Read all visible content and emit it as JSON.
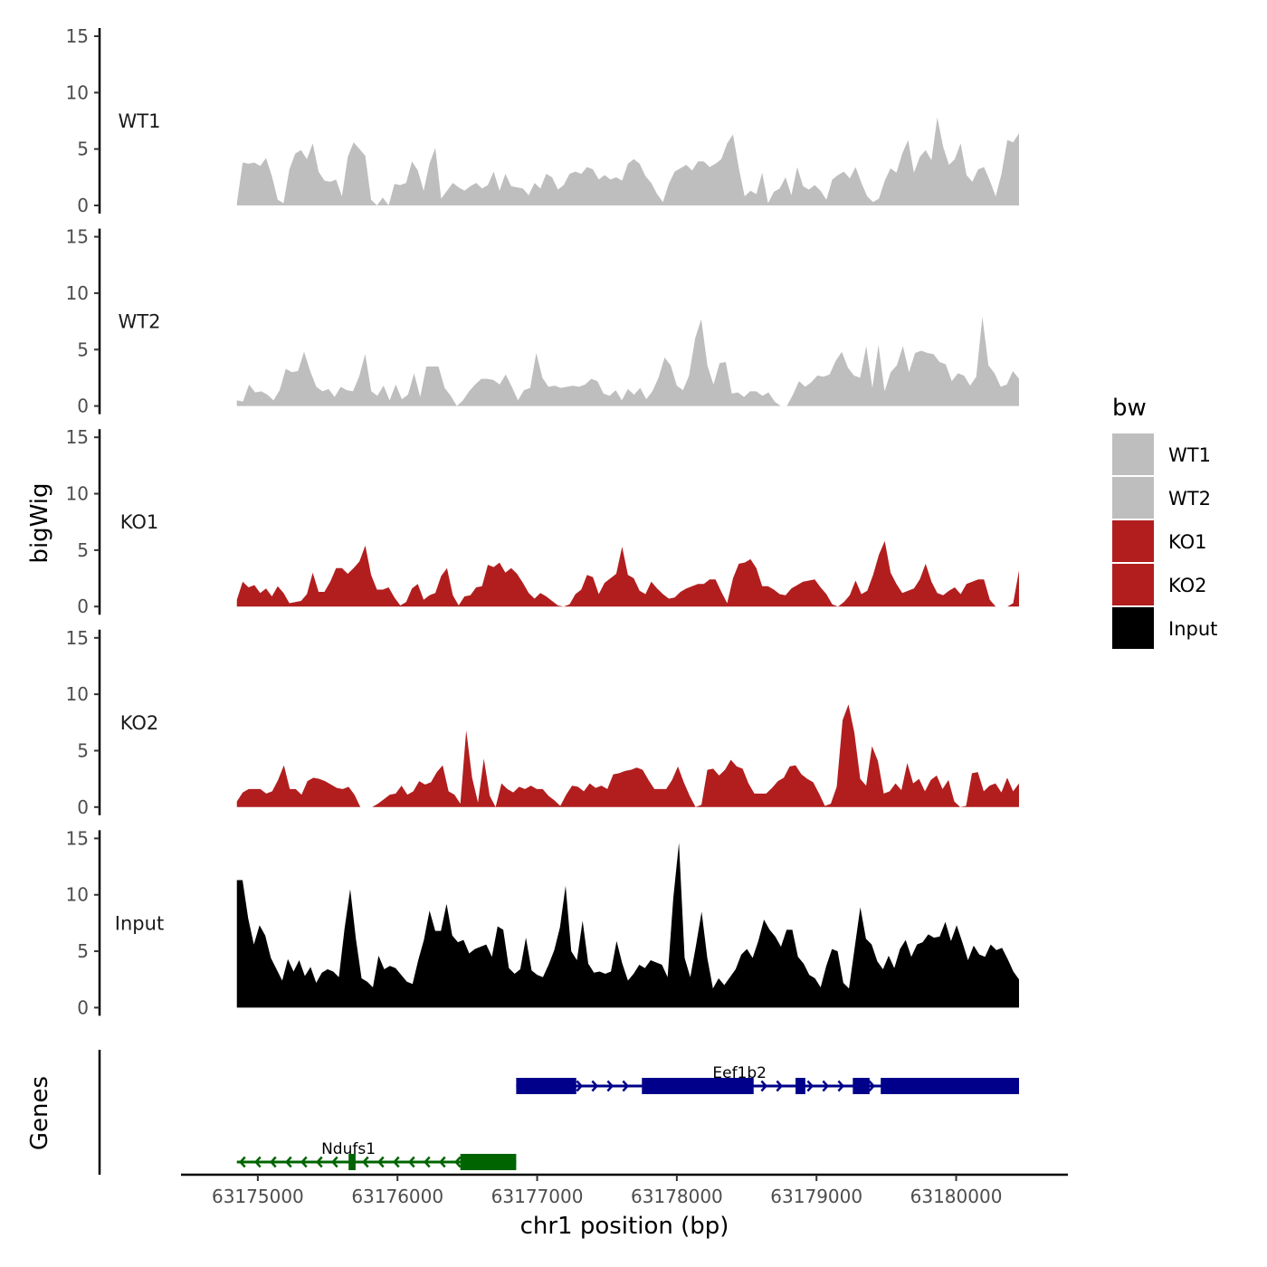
{
  "chart_data": {
    "type": "area",
    "chromosome": "chr1",
    "ylabel": "bigWig",
    "xlabel": "chr1 position (bp)",
    "xlim": [
      63174450,
      63180800
    ],
    "x_range": [
      63174850,
      63180450
    ],
    "x_ticks": [
      63175000,
      63176000,
      63177000,
      63178000,
      63179000,
      63180000
    ],
    "x_tick_labels": [
      "63175000",
      "63176000",
      "63177000",
      "63178000",
      "63179000",
      "63180000"
    ],
    "ylim": [
      0,
      15
    ],
    "y_ticks": [
      0,
      5,
      10,
      15
    ],
    "y_tick_labels": [
      "0",
      "5",
      "10",
      "15"
    ],
    "series": [
      {
        "name": "WT1",
        "color": "#bebebe",
        "values": [
          0.2,
          3.8,
          3.7,
          3.8,
          3.5,
          4.2,
          2.6,
          0.5,
          0.2,
          3.2,
          4.6,
          4.9,
          4.1,
          5.5,
          3.0,
          2.2,
          2.1,
          2.3,
          0.8,
          4.3,
          5.6,
          5.0,
          4.4,
          0.5,
          0,
          0.7,
          0,
          1.9,
          1.8,
          2.0,
          3.9,
          3.1,
          1.3,
          3.7,
          5.1,
          0.6,
          1.3,
          2.0,
          1.6,
          1.3,
          1.7,
          2.0,
          1.5,
          1.8,
          3.0,
          1.3,
          2.8,
          1.7,
          1.6,
          1.5,
          0.9,
          2.0,
          1.5,
          2.8,
          2.5,
          1.4,
          1.8,
          2.8,
          3.0,
          2.8,
          3.4,
          3.2,
          2.3,
          2.7,
          2.3,
          2.5,
          2.2,
          3.7,
          4.1,
          3.7,
          2.6,
          2.0,
          1.0,
          0.3,
          1.9,
          3.0,
          3.3,
          3.6,
          3.1,
          3.9,
          3.9,
          3.4,
          3.7,
          4.1,
          5.5,
          6.3,
          3.3,
          0.8,
          1.3,
          1.0,
          2.9,
          0.2,
          1.2,
          1.5,
          2.5,
          0.9,
          3.4,
          1.7,
          1.4,
          1.8,
          1.3,
          0.5,
          2.3,
          2.7,
          3.0,
          2.4,
          3.4,
          2.0,
          0.8,
          0.3,
          0.6,
          2.2,
          3.3,
          2.9,
          4.6,
          5.8,
          2.9,
          4.3,
          4.9,
          4.0,
          7.8,
          5.2,
          3.6,
          4.1,
          5.5,
          2.7,
          2.1,
          3.2,
          3.4,
          2.2,
          0.8,
          2.8,
          5.8,
          5.6,
          6.4
        ]
      },
      {
        "name": "WT2",
        "color": "#bebebe",
        "values": [
          0.5,
          0.4,
          1.9,
          1.2,
          1.3,
          1.0,
          0.5,
          1.4,
          3.3,
          3.0,
          3.1,
          4.8,
          3.1,
          1.7,
          1.3,
          1.5,
          0.8,
          1.7,
          1.4,
          1.3,
          2.6,
          4.6,
          1.3,
          0.9,
          1.8,
          0.5,
          1.9,
          0.6,
          1.0,
          2.9,
          0.8,
          3.5,
          3.5,
          3.5,
          1.6,
          0.9,
          0,
          0.5,
          1.3,
          1.9,
          2.4,
          2.4,
          2.3,
          1.9,
          2.8,
          1.7,
          0.5,
          1.4,
          1.6,
          4.7,
          2.5,
          1.7,
          1.8,
          1.6,
          1.7,
          1.8,
          1.7,
          1.9,
          2.4,
          2.2,
          1.1,
          0.9,
          1.4,
          0.5,
          1.5,
          1.0,
          1.6,
          0.6,
          1.3,
          2.5,
          4.3,
          3.6,
          1.8,
          1.4,
          2.7,
          6.0,
          7.7,
          3.6,
          1.9,
          3.8,
          3.9,
          1.1,
          1.2,
          0.8,
          1.3,
          1.3,
          0.9,
          1.2,
          0.4,
          0,
          0,
          1.0,
          2.2,
          1.7,
          2.1,
          2.7,
          2.6,
          2.8,
          4.0,
          4.8,
          3.4,
          2.7,
          2.5,
          5.3,
          1.6,
          5.4,
          1.3,
          3.0,
          3.6,
          5.3,
          3.0,
          4.7,
          4.9,
          4.7,
          4.6,
          3.9,
          3.7,
          2.2,
          2.9,
          2.7,
          1.8,
          2.6,
          7.9,
          3.6,
          2.9,
          1.7,
          1.9,
          3.1,
          2.4
        ]
      },
      {
        "name": "KO1",
        "color": "#b21e1e",
        "values": [
          0.6,
          2.2,
          1.7,
          1.9,
          1.2,
          1.6,
          0.9,
          1.8,
          1.2,
          0.3,
          0.4,
          0.5,
          1.1,
          3.0,
          1.3,
          1.3,
          2.2,
          3.4,
          3.4,
          2.9,
          3.4,
          4.0,
          5.4,
          2.8,
          1.5,
          1.5,
          1.7,
          0.8,
          0.1,
          0.4,
          1.6,
          2.0,
          0.6,
          1.0,
          1.2,
          2.7,
          3.4,
          1.0,
          0.1,
          0.9,
          1.0,
          1.7,
          1.8,
          3.7,
          3.5,
          3.9,
          3.0,
          3.4,
          2.9,
          2.1,
          1.2,
          0.7,
          1.2,
          0.9,
          0.5,
          0.1,
          0,
          0.2,
          1.1,
          1.5,
          2.8,
          2.6,
          1.1,
          2.1,
          2.5,
          2.9,
          5.3,
          2.8,
          2.5,
          1.4,
          1.1,
          2.2,
          1.6,
          1.1,
          0.7,
          0.8,
          1.3,
          1.6,
          1.8,
          2.0,
          2.0,
          2.4,
          2.4,
          1.3,
          0.3,
          2.5,
          3.8,
          3.9,
          4.2,
          3.4,
          1.8,
          1.8,
          1.5,
          1.1,
          1.0,
          1.6,
          1.9,
          2.2,
          2.3,
          2.4,
          1.7,
          1.1,
          0.2,
          0,
          0.4,
          1.0,
          2.3,
          1.1,
          1.4,
          2.8,
          4.6,
          5.8,
          3.0,
          2.0,
          1.2,
          1.4,
          1.6,
          2.4,
          3.8,
          2.2,
          1.2,
          1.0,
          1.4,
          1.7,
          1.1,
          2.0,
          2.2,
          2.4,
          2.4,
          0.6,
          0,
          0,
          0,
          0.3,
          3.2
        ]
      },
      {
        "name": "KO2",
        "color": "#b21e1e",
        "values": [
          0.5,
          1.3,
          1.6,
          1.6,
          1.6,
          1.2,
          1.4,
          2.4,
          3.7,
          1.6,
          1.6,
          1.1,
          2.3,
          2.6,
          2.5,
          2.3,
          2.0,
          1.7,
          1.6,
          1.8,
          1.1,
          0,
          0,
          0,
          0.3,
          0.7,
          1.1,
          1.2,
          1.9,
          1.1,
          1.4,
          2.3,
          2.0,
          2.2,
          3.1,
          3.7,
          1.4,
          1.1,
          0.3,
          6.8,
          2.6,
          0.4,
          4.3,
          1.0,
          0,
          2.1,
          1.6,
          1.3,
          1.8,
          1.6,
          1.9,
          1.6,
          1.6,
          1.0,
          0.6,
          0.1,
          1.1,
          1.9,
          1.8,
          1.4,
          2.1,
          1.7,
          1.9,
          1.6,
          2.9,
          3.0,
          3.2,
          3.3,
          3.5,
          3.3,
          2.4,
          1.6,
          1.6,
          1.6,
          2.4,
          3.6,
          2.2,
          1.0,
          0,
          0.2,
          3.3,
          3.4,
          2.8,
          3.3,
          4.2,
          3.6,
          3.4,
          2.1,
          1.2,
          1.2,
          1.2,
          1.7,
          2.3,
          2.6,
          3.6,
          3.7,
          2.9,
          2.5,
          2.2,
          1.2,
          0.1,
          0.3,
          1.8,
          7.7,
          9.1,
          6.6,
          2.5,
          1.9,
          5.4,
          4.1,
          1.2,
          1.4,
          2.1,
          1.5,
          3.9,
          2.1,
          2.5,
          1.4,
          2.4,
          2.8,
          1.6,
          2.4,
          0.5,
          0,
          0.1,
          3.0,
          3.1,
          1.4,
          1.9,
          2.1,
          1.3,
          2.6,
          1.4,
          2.1
        ]
      },
      {
        "name": "Input",
        "color": "#000000",
        "values": [
          11.3,
          11.3,
          7.9,
          5.6,
          7.3,
          6.4,
          4.4,
          3.4,
          2.4,
          4.3,
          3.2,
          4.2,
          2.8,
          3.6,
          2.2,
          3.1,
          3.4,
          3.2,
          2.7,
          7.0,
          10.5,
          6.1,
          2.6,
          2.3,
          1.8,
          4.6,
          3.4,
          3.7,
          3.5,
          2.9,
          2.3,
          2.1,
          4.2,
          6.0,
          8.6,
          6.8,
          6.8,
          9.2,
          6.4,
          5.8,
          6.0,
          4.8,
          5.2,
          5.4,
          5.6,
          4.5,
          7.2,
          6.9,
          3.5,
          3.0,
          3.4,
          6.2,
          3.3,
          2.9,
          2.7,
          3.8,
          5.1,
          7.1,
          10.8,
          5.0,
          4.2,
          7.7,
          3.9,
          3.1,
          3.2,
          3.0,
          3.2,
          5.9,
          3.9,
          2.4,
          3.0,
          3.8,
          3.5,
          4.2,
          4.0,
          3.8,
          2.7,
          9.7,
          14.6,
          4.4,
          2.7,
          5.5,
          8.5,
          4.4,
          1.7,
          2.6,
          2.0,
          2.7,
          3.4,
          4.7,
          5.2,
          4.4,
          5.9,
          7.8,
          6.9,
          6.3,
          5.4,
          6.9,
          6.9,
          4.5,
          3.9,
          2.9,
          2.6,
          1.8,
          3.7,
          5.2,
          5.0,
          2.2,
          1.7,
          5.3,
          8.9,
          6.1,
          5.6,
          4.1,
          3.4,
          4.6,
          3.5,
          5.2,
          6.0,
          4.5,
          5.6,
          5.8,
          6.5,
          6.2,
          6.3,
          7.6,
          5.9,
          7.3,
          5.8,
          4.2,
          5.5,
          4.7,
          4.5,
          5.6,
          5.1,
          5.3,
          4.3,
          3.2,
          2.5
        ]
      }
    ],
    "genes": [
      {
        "name": "Ndufs1",
        "strand": "-",
        "color": "#006400",
        "start": 63174850,
        "end": 63176850,
        "exons": [
          [
            63175650,
            63175700
          ],
          [
            63176450,
            63176850
          ]
        ]
      },
      {
        "name": "Eef1b2",
        "strand": "+",
        "color": "#00008b",
        "start": 63176850,
        "end": 63180450,
        "exons": [
          [
            63176850,
            63177280
          ],
          [
            63177750,
            63178550
          ],
          [
            63178850,
            63178920
          ],
          [
            63179260,
            63179380
          ],
          [
            63179460,
            63180450
          ]
        ]
      }
    ],
    "genes_track_label": "Genes",
    "legend": {
      "title": "bw",
      "position": "right",
      "entries": [
        {
          "label": "WT1",
          "color": "#bebebe"
        },
        {
          "label": "WT2",
          "color": "#bebebe"
        },
        {
          "label": "KO1",
          "color": "#b21e1e"
        },
        {
          "label": "KO2",
          "color": "#b21e1e"
        },
        {
          "label": "Input",
          "color": "#000000"
        }
      ]
    }
  }
}
